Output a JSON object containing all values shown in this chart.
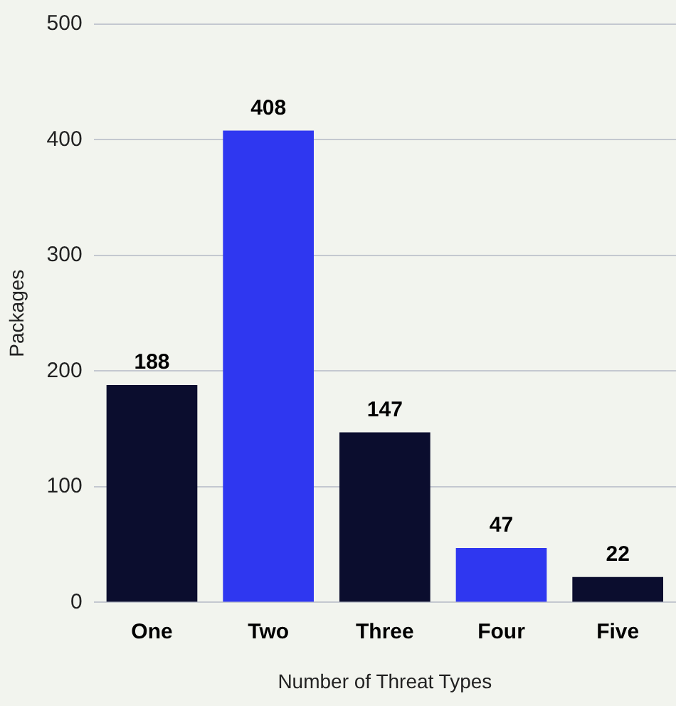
{
  "chart_data": {
    "type": "bar",
    "xlabel": "Number of Threat Types",
    "ylabel": "Packages",
    "categories": [
      "One",
      "Two",
      "Three",
      "Four",
      "Five"
    ],
    "values": [
      188,
      408,
      147,
      47,
      22
    ],
    "colors": [
      "#0b0d2e",
      "#2f37f0",
      "#0b0d2e",
      "#2f37f0",
      "#0b0d2e"
    ],
    "ylim": [
      0,
      500
    ],
    "yticks": [
      0,
      100,
      200,
      300,
      400,
      500
    ],
    "grid": "y",
    "data_labels": true,
    "legend": false
  }
}
